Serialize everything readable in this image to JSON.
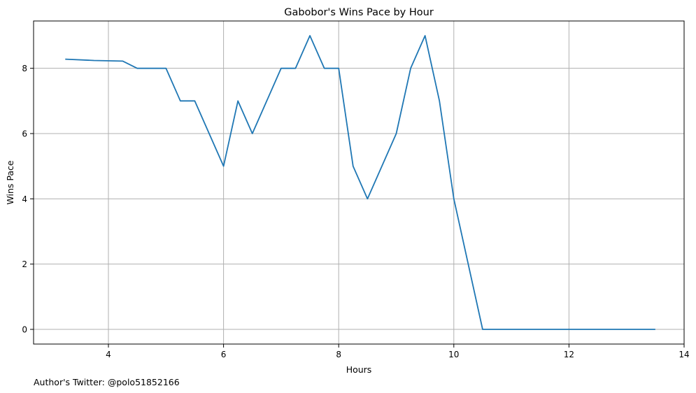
{
  "chart_data": {
    "type": "line",
    "title": "Gabobor's Wins Pace by Hour",
    "xlabel": "Hours",
    "ylabel": "Wins Pace",
    "footnote": "Author's Twitter: @polo51852166",
    "xlim": [
      2.7,
      14.0
    ],
    "ylim": [
      -0.45,
      9.45
    ],
    "xticks": [
      4,
      6,
      8,
      10,
      12,
      14
    ],
    "yticks": [
      0,
      2,
      4,
      6,
      8
    ],
    "grid": true,
    "line_color": "#1f77b4",
    "grid_color": "#b0b0b0",
    "series": [
      {
        "x": [
          3.25,
          3.75,
          4.25,
          4.5,
          5.0,
          5.25,
          5.5,
          6.0,
          6.25,
          6.5,
          7.0,
          7.25,
          7.5,
          7.75,
          8.0,
          8.25,
          8.5,
          9.0,
          9.25,
          9.5,
          9.75,
          10.0,
          10.5,
          11.0,
          11.5,
          12.0,
          12.5,
          13.0,
          13.5
        ],
        "values": [
          8.28,
          8.24,
          8.22,
          8.0,
          8.0,
          7.0,
          7.0,
          5.0,
          7.0,
          6.0,
          8.0,
          8.0,
          9.0,
          8.0,
          8.0,
          5.0,
          4.0,
          6.0,
          8.0,
          9.0,
          7.0,
          4.0,
          0.0,
          0.0,
          0.0,
          0.0,
          0.0,
          0.0,
          0.0
        ]
      }
    ]
  }
}
